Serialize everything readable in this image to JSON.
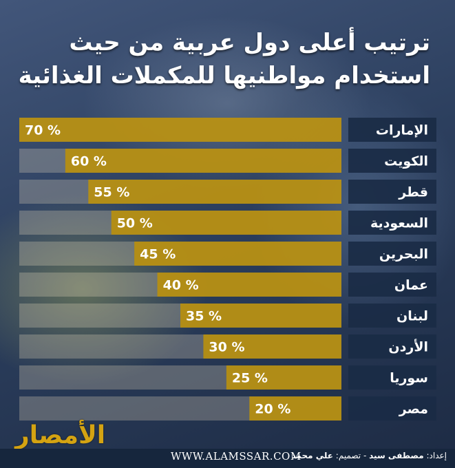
{
  "header": {
    "title_line1": "ترتيب أعلى دول عربية من حيث",
    "title_line2": "استخدام مواطنيها للمكملات الغذائية"
  },
  "footer": {
    "website": "WWW.ALAMSSAR.COM",
    "prepared_label": "إعداد:",
    "author": "مصطفى سيد",
    "separator": " - ",
    "design_label": "تصميم:",
    "designer": "علي محمد"
  },
  "logo": {
    "text": "الأمصار"
  },
  "colors": {
    "bar_filled": "#b78f10",
    "bar_empty": "#6f5a1a",
    "label_box": "#1a2b45",
    "text": "#ffffff"
  },
  "chart_data": {
    "type": "bar",
    "orientation": "horizontal",
    "title": "ترتيب أعلى دول عربية من حيث استخدام مواطنيها للمكملات الغذائية",
    "categories": [
      "الإمارات",
      "الكويت",
      "قطر",
      "السعودية",
      "البحرين",
      "عمان",
      "لبنان",
      "الأردن",
      "سوريا",
      "مصر"
    ],
    "values": [
      70,
      60,
      55,
      50,
      45,
      40,
      35,
      30,
      25,
      20
    ],
    "value_labels": [
      "70 %",
      "60 %",
      "55 %",
      "50 %",
      "45 %",
      "40 %",
      "35 %",
      "30 %",
      "25 %",
      "20 %"
    ],
    "unit": "%",
    "xlim": [
      0,
      70
    ],
    "grid": false,
    "legend": "none"
  }
}
